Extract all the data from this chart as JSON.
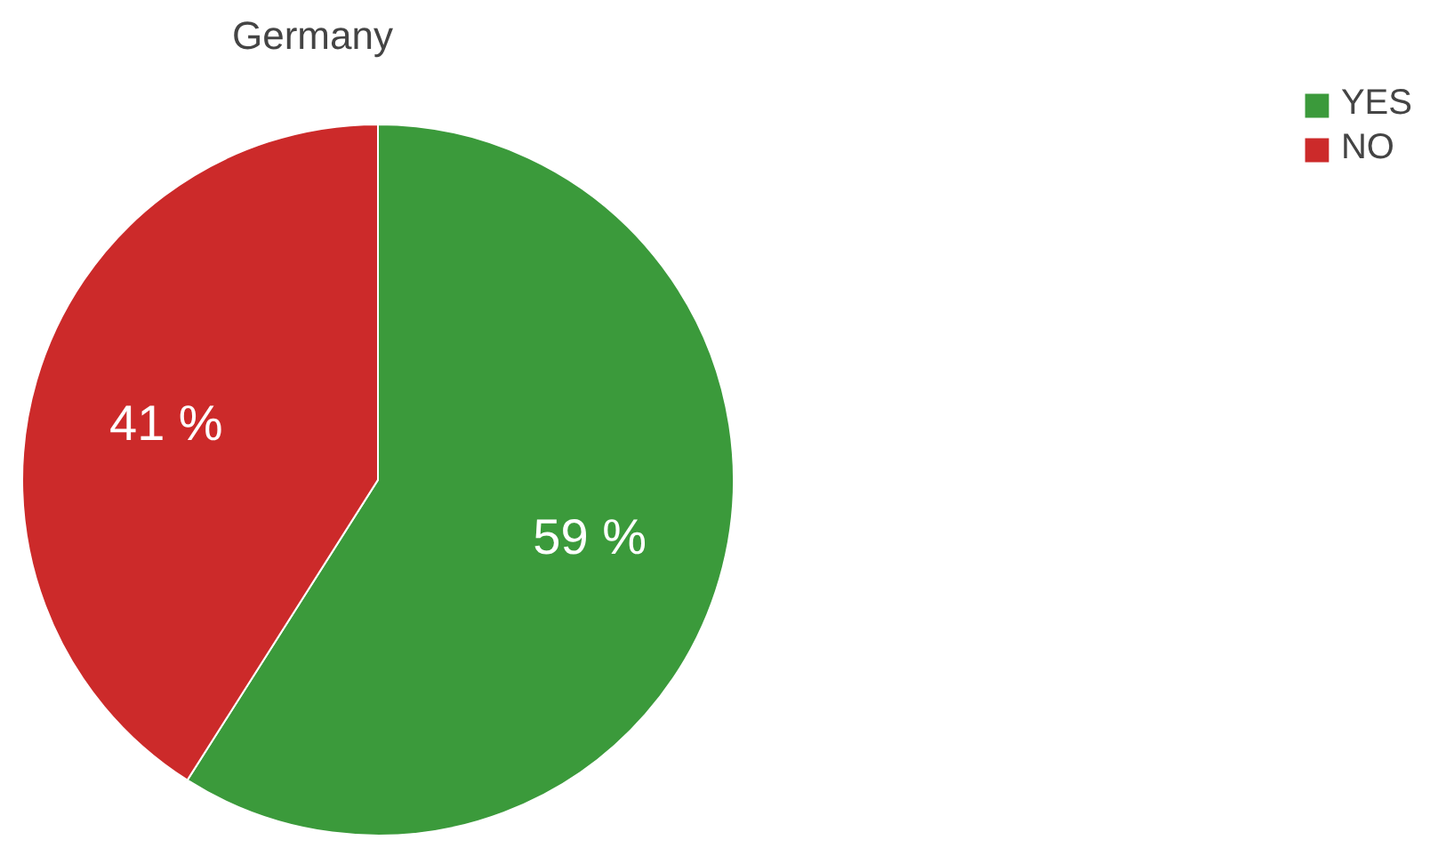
{
  "chart_data": {
    "type": "pie",
    "title": "Germany",
    "categories": [
      "YES",
      "NO"
    ],
    "values": [
      59,
      41
    ],
    "colors": [
      "#3b9a3b",
      "#cc2a2a"
    ],
    "value_labels": [
      "59 %",
      "41 %"
    ],
    "legend": "top right"
  }
}
